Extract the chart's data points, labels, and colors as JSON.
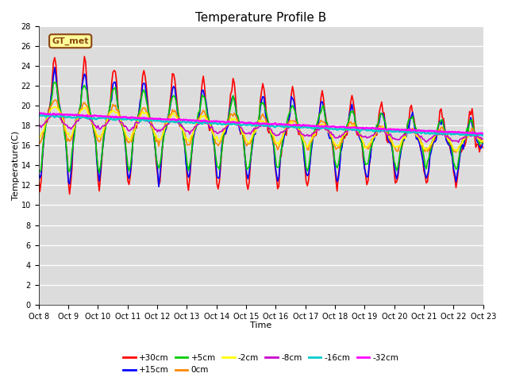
{
  "title": "Temperature Profile B",
  "xlabel": "Time",
  "ylabel": "Temperature(C)",
  "ylim": [
    0,
    28
  ],
  "yticks": [
    0,
    2,
    4,
    6,
    8,
    10,
    12,
    14,
    16,
    18,
    20,
    22,
    24,
    26,
    28
  ],
  "xtick_labels": [
    "Oct 8",
    "Oct 9",
    "Oct 10",
    "Oct 11",
    "Oct 12",
    "Oct 13",
    "Oct 14",
    "Oct 15",
    "Oct 16",
    "Oct 17",
    "Oct 18",
    "Oct 19",
    "Oct 20",
    "Oct 21",
    "Oct 22",
    "Oct 23"
  ],
  "series_colors": {
    "+30cm": "#ff0000",
    "+15cm": "#0000ff",
    "+5cm": "#00cc00",
    "0cm": "#ff8800",
    "-2cm": "#ffff00",
    "-8cm": "#cc00cc",
    "-16cm": "#00cccc",
    "-32cm": "#ff00ff"
  },
  "series_linewidths": {
    "+30cm": 1.2,
    "+15cm": 1.2,
    "+5cm": 1.2,
    "0cm": 1.2,
    "-2cm": 1.2,
    "-8cm": 1.2,
    "-16cm": 1.8,
    "-32cm": 1.8
  },
  "gt_met_box_facecolor": "#ffff99",
  "gt_met_box_edgecolor": "#8b4513",
  "background_color": "#dcdcdc",
  "title_fontsize": 11,
  "axis_label_fontsize": 8,
  "tick_fontsize": 7,
  "legend_fontsize": 7.5
}
